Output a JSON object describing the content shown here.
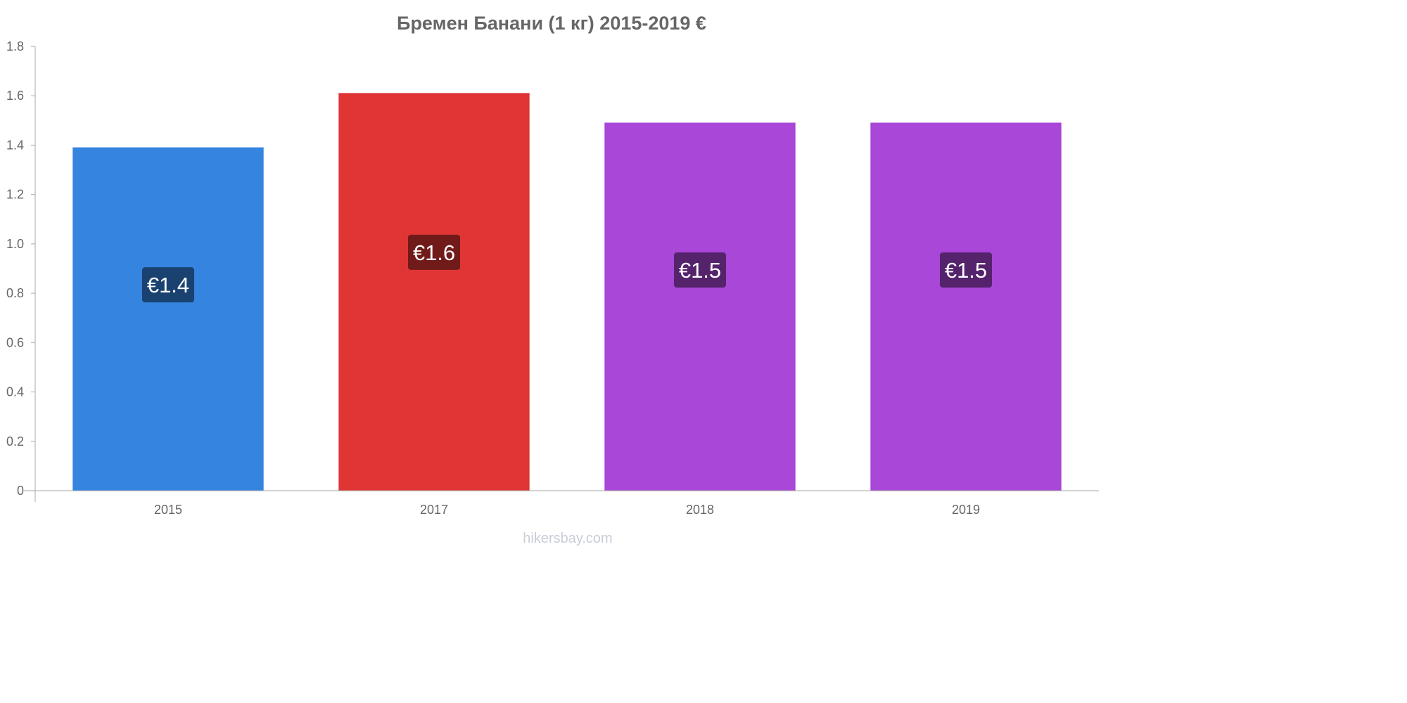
{
  "chart_data": {
    "type": "bar",
    "title": "Бремен Банани (1 кг) 2015-2019 €",
    "xlabel": "",
    "ylabel": "",
    "categories": [
      "2015",
      "2017",
      "2018",
      "2019"
    ],
    "values": [
      1.39,
      1.61,
      1.49,
      1.49
    ],
    "data_labels": [
      "€1.4",
      "€1.6",
      "€1.5",
      "€1.5"
    ],
    "bar_colors": [
      "#3584e0",
      "#e03535",
      "#a847d8",
      "#a847d8"
    ],
    "label_colors": [
      "#1a4270",
      "#701a1a",
      "#54236c",
      "#54236c"
    ],
    "ylim": [
      0,
      1.8
    ],
    "yticks": [
      "0",
      "0.2",
      "0.4",
      "0.6",
      "0.8",
      "1.0",
      "1.2",
      "1.4",
      "1.6",
      "1.8"
    ],
    "ytick_values": [
      0,
      0.2,
      0.4,
      0.6,
      0.8,
      1.0,
      1.2,
      1.4,
      1.6,
      1.8
    ],
    "grid": false,
    "legend": "none"
  },
  "watermark": "hikersbay.com"
}
